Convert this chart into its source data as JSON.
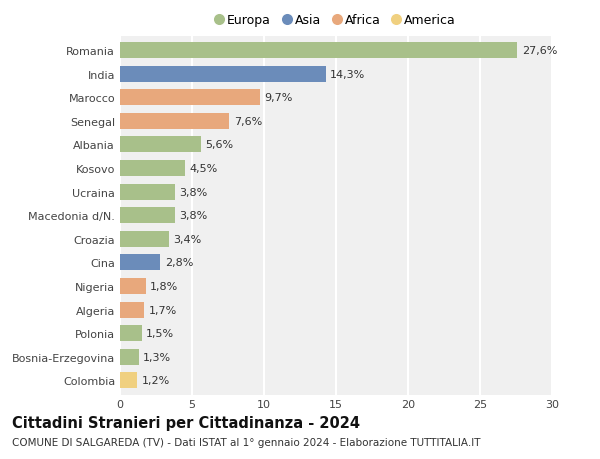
{
  "categories": [
    "Romania",
    "India",
    "Marocco",
    "Senegal",
    "Albania",
    "Kosovo",
    "Ucraina",
    "Macedonia d/N.",
    "Croazia",
    "Cina",
    "Nigeria",
    "Algeria",
    "Polonia",
    "Bosnia-Erzegovina",
    "Colombia"
  ],
  "values": [
    27.6,
    14.3,
    9.7,
    7.6,
    5.6,
    4.5,
    3.8,
    3.8,
    3.4,
    2.8,
    1.8,
    1.7,
    1.5,
    1.3,
    1.2
  ],
  "labels": [
    "27,6%",
    "14,3%",
    "9,7%",
    "7,6%",
    "5,6%",
    "4,5%",
    "3,8%",
    "3,8%",
    "3,4%",
    "2,8%",
    "1,8%",
    "1,7%",
    "1,5%",
    "1,3%",
    "1,2%"
  ],
  "continents": [
    "Europa",
    "Asia",
    "Africa",
    "Africa",
    "Europa",
    "Europa",
    "Europa",
    "Europa",
    "Europa",
    "Asia",
    "Africa",
    "Africa",
    "Europa",
    "Europa",
    "America"
  ],
  "colors": {
    "Europa": "#a8c08a",
    "Asia": "#6b8cba",
    "Africa": "#e8a87c",
    "America": "#f0d080"
  },
  "legend_order": [
    "Europa",
    "Asia",
    "Africa",
    "America"
  ],
  "title": "Cittadini Stranieri per Cittadinanza - 2024",
  "subtitle": "COMUNE DI SALGAREDA (TV) - Dati ISTAT al 1° gennaio 2024 - Elaborazione TUTTITALIA.IT",
  "xlim": [
    0,
    30
  ],
  "xticks": [
    0,
    5,
    10,
    15,
    20,
    25,
    30
  ],
  "bg_color": "#ffffff",
  "plot_bg_color": "#f0f0f0",
  "grid_color": "#ffffff",
  "bar_height": 0.68,
  "label_fontsize": 8,
  "tick_fontsize": 8,
  "title_fontsize": 10.5,
  "subtitle_fontsize": 7.5
}
